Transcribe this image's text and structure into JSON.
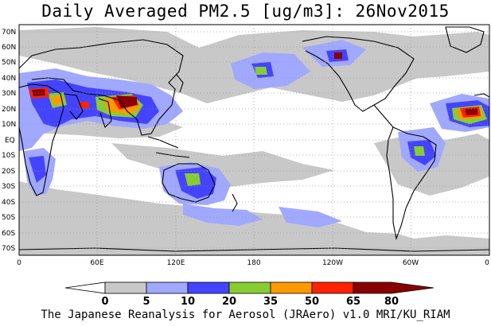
{
  "title": "Daily Averaged PM2.5 [ug/m3]: 26Nov2015",
  "footer": "The Japanese Reanalysis for Aerosol (JRAero) v1.0 MRI/KU_RIAM",
  "map": {
    "lat_labels": [
      "70N",
      "60N",
      "50N",
      "40N",
      "30N",
      "20N",
      "10N",
      "EQ",
      "10S",
      "20S",
      "30S",
      "40S",
      "50S",
      "60S",
      "70S"
    ],
    "lon_labels": [
      "0",
      "60E",
      "120E",
      "180",
      "120W",
      "60W",
      "0"
    ],
    "lat_range": [
      -75,
      75
    ],
    "lon_range": [
      0,
      360
    ],
    "grid": "dotted"
  },
  "colorbar": {
    "levels": [
      "0",
      "5",
      "10",
      "20",
      "35",
      "50",
      "65",
      "80"
    ],
    "colors": [
      "#ffffff",
      "#c8c8c8",
      "#a0a8ff",
      "#4444ff",
      "#88cc33",
      "#ff9900",
      "#ff2200",
      "#880000"
    ]
  }
}
